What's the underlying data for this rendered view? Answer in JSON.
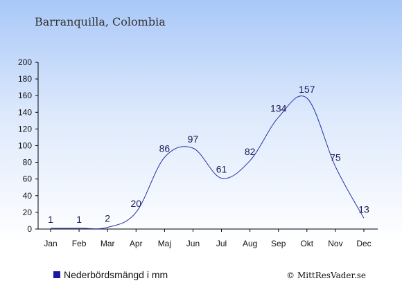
{
  "location": "Barranquilla, Colombia",
  "credit": "© MittResVader.se",
  "colors": {
    "line": "#2233aa",
    "legend": "#1a1aa0",
    "axis": "#000000"
  },
  "chart_data": {
    "type": "line",
    "title": "",
    "xlabel": "",
    "ylabel": "",
    "categories": [
      "Jan",
      "Feb",
      "Mar",
      "Apr",
      "Maj",
      "Jun",
      "Jul",
      "Aug",
      "Sep",
      "Okt",
      "Nov",
      "Dec"
    ],
    "series": [
      {
        "name": "Nederbördsmängd i mm",
        "values": [
          1,
          1,
          2,
          20,
          86,
          97,
          61,
          82,
          134,
          157,
          75,
          13
        ]
      }
    ],
    "ylim": [
      0,
      200
    ],
    "yticks": [
      0,
      20,
      40,
      60,
      80,
      100,
      120,
      140,
      160,
      180,
      200
    ],
    "grid": false,
    "legend": "bottom-left"
  }
}
